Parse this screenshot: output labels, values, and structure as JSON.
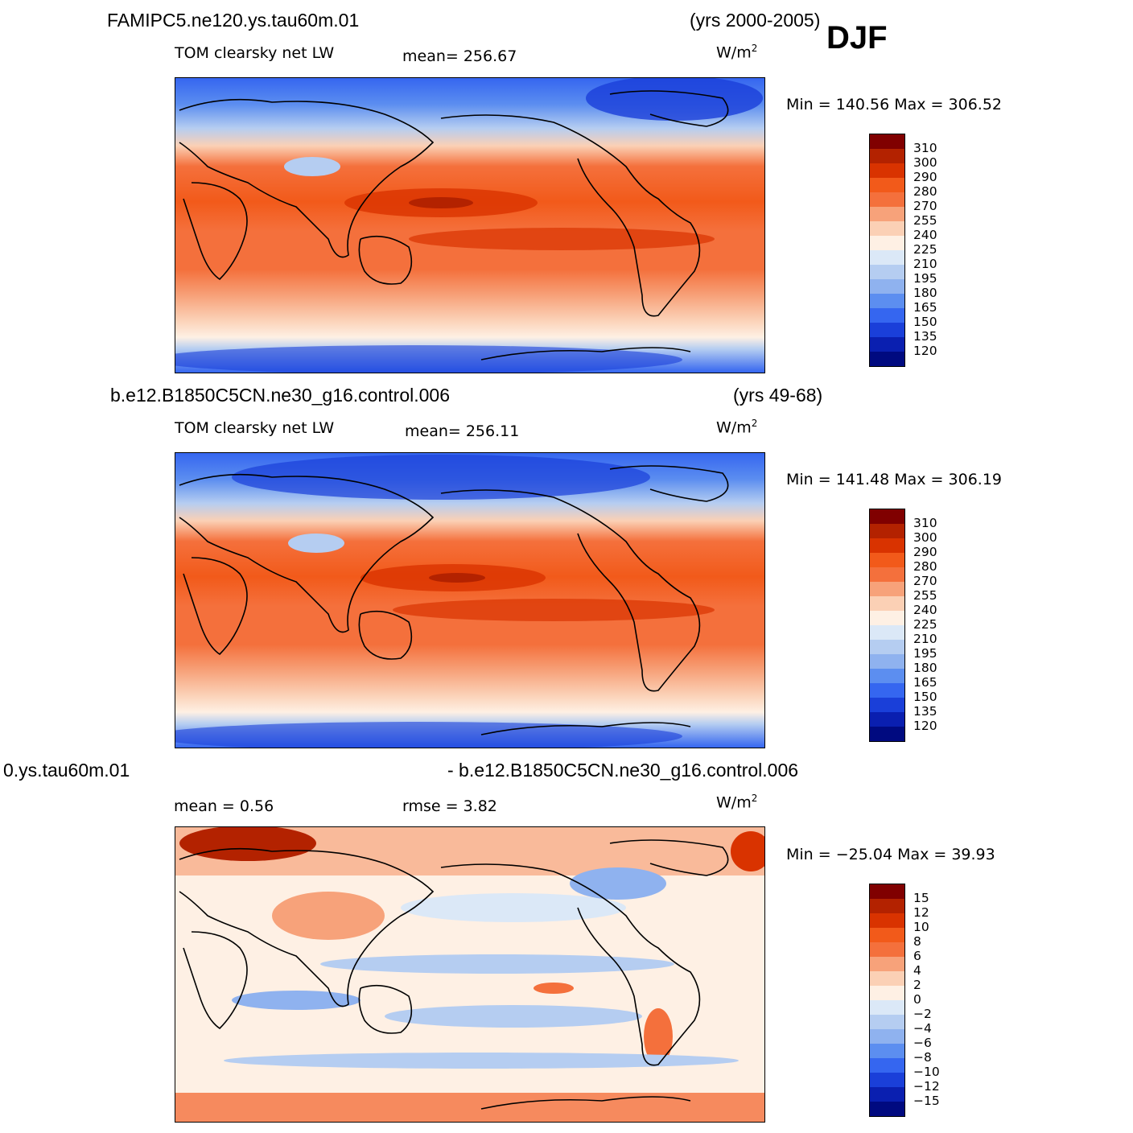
{
  "season": "DJF",
  "panels": [
    {
      "case": "FAMIPC5.ne120.ys.tau60m.01",
      "years": "(yrs 2000-2005)",
      "left_label": "TOM clearsky net LW",
      "mid_label": "mean=  256.67",
      "unit": "W/m",
      "unit_sup": "2",
      "minmax": "Min  =  140.56  Max  =  306.52",
      "legend_labels": [
        "310",
        "300",
        "290",
        "280",
        "270",
        "255",
        "240",
        "225",
        "210",
        "195",
        "180",
        "165",
        "150",
        "135",
        "120"
      ],
      "legend_colors": [
        "#800000",
        "#b32200",
        "#d93300",
        "#f25a1a",
        "#f4703c",
        "#f7a27a",
        "#fbd0b5",
        "#fef0e4",
        "#dbe8f7",
        "#b5cdf1",
        "#8fb2ef",
        "#5c8ef0",
        "#3566f0",
        "#1a3fd9",
        "#0a1fb0",
        "#000a80"
      ],
      "data_range": {
        "min": 140.56,
        "max": 306.52,
        "mean": 256.67
      }
    },
    {
      "case": "b.e12.B1850C5CN.ne30_g16.control.006",
      "years": "(yrs 49-68)",
      "left_label": "TOM clearsky net LW",
      "mid_label": "mean=  256.11",
      "unit": "W/m",
      "unit_sup": "2",
      "minmax": "Min  =  141.48  Max  =  306.19",
      "legend_labels": [
        "310",
        "300",
        "290",
        "280",
        "270",
        "255",
        "240",
        "225",
        "210",
        "195",
        "180",
        "165",
        "150",
        "135",
        "120"
      ],
      "legend_colors": [
        "#800000",
        "#b32200",
        "#d93300",
        "#f25a1a",
        "#f4703c",
        "#f7a27a",
        "#fbd0b5",
        "#fef0e4",
        "#dbe8f7",
        "#b5cdf1",
        "#8fb2ef",
        "#5c8ef0",
        "#3566f0",
        "#1a3fd9",
        "#0a1fb0",
        "#000a80"
      ],
      "data_range": {
        "min": 141.48,
        "max": 306.19,
        "mean": 256.11
      }
    },
    {
      "case": "0.ys.tau60m.01",
      "years": "- b.e12.B1850C5CN.ne30_g16.control.006",
      "left_label": "mean =     0.56",
      "mid_label": "rmse =     3.82",
      "unit": "W/m",
      "unit_sup": "2",
      "minmax": "Min  = −25.04  Max  =   39.93",
      "legend_labels": [
        "15",
        "12",
        "10",
        "8",
        "6",
        "4",
        "2",
        "0",
        "−2",
        "−4",
        "−6",
        "−8",
        "−10",
        "−12",
        "−15"
      ],
      "legend_colors": [
        "#800000",
        "#b32200",
        "#d93300",
        "#f25a1a",
        "#f4703c",
        "#f7a27a",
        "#fbd0b5",
        "#fef0e4",
        "#dbe8f7",
        "#b5cdf1",
        "#8fb2ef",
        "#5c8ef0",
        "#3566f0",
        "#1a3fd9",
        "#0a1fb0",
        "#000a80"
      ],
      "data_range": {
        "min": -25.04,
        "max": 39.93,
        "mean": 0.56,
        "rmse": 3.82
      }
    }
  ]
}
